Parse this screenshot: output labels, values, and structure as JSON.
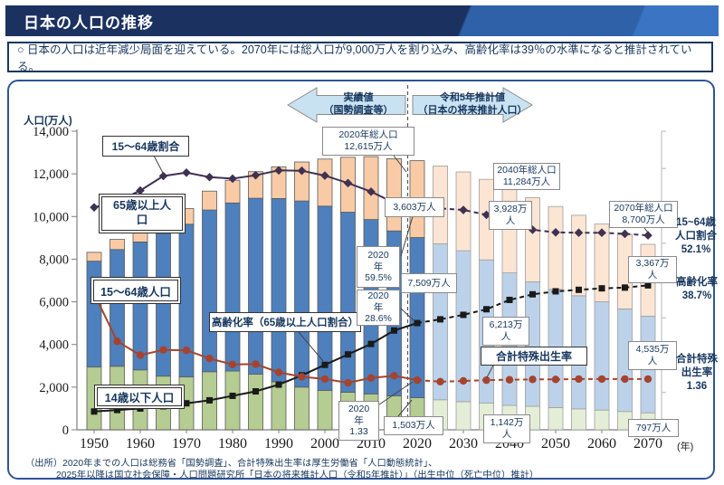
{
  "header": {
    "title": "日本の人口の推移"
  },
  "callout": {
    "text": "○ 日本の人口は近年減少局面を迎えている。2070年には総人口が9,000万人を割り込み、高齢化率は39％の水準になると推計されている。"
  },
  "arrows": {
    "actual": "実績値\n（国勢調査等）",
    "projection": "令和5年推計値\n（日本の将来推計人口）"
  },
  "axis": {
    "y_title": "人口(万人)",
    "x_unit": "(年)"
  },
  "series_boxes": {
    "working_share": "15～64歳割合",
    "senior_pop": "65歳以上人\n口",
    "working_pop": "15～64歳人口",
    "child_pop": "14歳以下人口",
    "aging_rate": "高齢化率（65歳以上人口割合）",
    "tfr": "合計特殊出生率"
  },
  "annotations": {
    "total_2020": "2020年総人口\n12,615万人",
    "senior_2020": "3,603万人",
    "share_2020": "2020\n年\n59.5%",
    "aging_2020": "2020\n年\n28.6%",
    "working_2020": "7,509万人",
    "child_2020": "1,503万人",
    "tfr_2020": "2020\n年\n1.33",
    "total_2040": "2040年総人口\n11,284万人",
    "senior_2040": "3,928万\n人",
    "working_2040": "6,213万\n人",
    "child_2040": "1,142万\n人",
    "total_2070": "2070年総人口\n8,700万人",
    "senior_2070": "3,367万\n人",
    "working_2070": "4,535万\n人",
    "child_2070": "797万人"
  },
  "right_labels": {
    "working_share": "15~64歳\n人口割合\n52.1%",
    "aging": "高齢化率\n38.7%",
    "tfr": "合計特殊\n出生率\n1.36"
  },
  "source": {
    "line1": "（出所）2020年までの人口は総務省「国勢調査」、合計特殊出生率は厚生労働省「人口動態統計」、",
    "line2": "2025年以降は国立社会保障・人口問題研究所「日本の将来推計人口（令和5年推計）」（出生中位（死亡中位）推計）"
  },
  "colors": {
    "header_bg": "#1b3160",
    "header_accent": "#2e61a8",
    "navy_text": "#17375e",
    "frame_border": "#2f5597",
    "arrow_fill": "#c9e2f2",
    "arrow_stroke": "#8c8c8c",
    "bar_child": "#b5cc92",
    "bar_working": "#4d80bd",
    "bar_senior": "#f8cba6",
    "bar_child_proj": "#e4eed6",
    "bar_working_proj": "#bcd2ea",
    "bar_senior_proj": "#fce5d3",
    "line_working_share": "#3f3152",
    "line_aging": "#1a1a1a",
    "line_tfr": "#a6432e"
  },
  "chart_data": {
    "type": "bar",
    "subtype": "stacked-bars-with-lines",
    "title": "日本の人口の推移",
    "ylabel": "人口(万人)",
    "ylim": [
      0,
      14000
    ],
    "ytick_step": 2000,
    "categories": [
      1950,
      1955,
      1960,
      1965,
      1970,
      1975,
      1980,
      1985,
      1990,
      1995,
      2000,
      2005,
      2010,
      2015,
      2020,
      2025,
      2030,
      2035,
      2040,
      2045,
      2050,
      2055,
      2060,
      2065,
      2070
    ],
    "xticks": [
      1950,
      1960,
      1970,
      1980,
      1990,
      2000,
      2010,
      2020,
      2030,
      2040,
      2050,
      2060,
      2070
    ],
    "actual_through": 2020,
    "period_labels": {
      "actual": "実績値（国勢調査等）",
      "projection": "令和5年推計値（日本の将来推計人口）"
    },
    "bar_series": [
      {
        "name": "14歳以下人口",
        "unit": "万人",
        "color_key": "child",
        "values": [
          2943,
          2980,
          2807,
          2517,
          2482,
          2722,
          2752,
          2604,
          2254,
          2003,
          1851,
          1759,
          1684,
          1595,
          1503,
          1407,
          1321,
          1246,
          1142,
          1103,
          1041,
          983,
          926,
          860,
          797
        ]
      },
      {
        "name": "15～64歳人口",
        "unit": "万人",
        "color_key": "working",
        "values": [
          4966,
          5473,
          6000,
          6693,
          7157,
          7581,
          7884,
          8251,
          8590,
          8726,
          8638,
          8442,
          8174,
          7729,
          7509,
          7310,
          7076,
          6722,
          6213,
          5832,
          5540,
          5306,
          5078,
          4809,
          4535
        ]
      },
      {
        "name": "65歳以上人口",
        "unit": "万人",
        "color_key": "senior",
        "values": [
          411,
          475,
          535,
          618,
          733,
          887,
          1065,
          1247,
          1489,
          1828,
          2204,
          2576,
          2948,
          3387,
          3603,
          3653,
          3696,
          3774,
          3928,
          3945,
          3888,
          3770,
          3643,
          3490,
          3367
        ]
      }
    ],
    "line_series": [
      {
        "name": "15～64歳割合",
        "unit": "%",
        "axis_max": 80,
        "marker": "diamond",
        "color_key": "line_working_share",
        "values": [
          59.6,
          61.2,
          64.1,
          68.0,
          68.9,
          67.7,
          67.3,
          68.2,
          69.5,
          69.4,
          68.1,
          66.1,
          63.8,
          60.8,
          59.5,
          59.3,
          58.9,
          57.6,
          55.1,
          53.6,
          52.9,
          52.8,
          52.8,
          52.5,
          52.1
        ]
      },
      {
        "name": "高齢化率（65歳以上人口割合）",
        "unit": "%",
        "axis_max": 80,
        "marker": "square",
        "color_key": "line_aging",
        "values": [
          4.9,
          5.3,
          5.7,
          6.3,
          7.1,
          7.9,
          9.1,
          10.3,
          12.1,
          14.6,
          17.4,
          20.2,
          23.0,
          26.6,
          28.6,
          29.6,
          30.8,
          32.3,
          34.8,
          36.3,
          37.1,
          37.5,
          37.9,
          38.1,
          38.7
        ]
      },
      {
        "name": "合計特殊出生率",
        "unit": "",
        "axis_max": 8,
        "marker": "circle",
        "color_key": "line_tfr",
        "values": [
          3.65,
          2.37,
          2.0,
          2.14,
          2.13,
          1.91,
          1.75,
          1.76,
          1.54,
          1.42,
          1.36,
          1.26,
          1.39,
          1.45,
          1.33,
          1.29,
          1.31,
          1.33,
          1.34,
          1.35,
          1.35,
          1.36,
          1.36,
          1.36,
          1.36
        ]
      }
    ],
    "key_callouts": {
      "total_population": {
        "2020": 12615,
        "2040": 11284,
        "2070": 8700
      },
      "senior_population": {
        "2020": 3603,
        "2040": 3928,
        "2070": 3367
      },
      "working_population": {
        "2020": 7509,
        "2040": 6213,
        "2070": 4535
      },
      "child_population": {
        "2020": 1503,
        "2040": 1142,
        "2070": 797
      },
      "working_share_pct": {
        "2020": 59.5,
        "2070": 52.1
      },
      "aging_rate_pct": {
        "2020": 28.6,
        "2070": 38.7
      },
      "total_fertility_rate": {
        "2020": 1.33,
        "2070": 1.36
      }
    },
    "legend_position": "in-plot callout boxes",
    "grid": false
  }
}
